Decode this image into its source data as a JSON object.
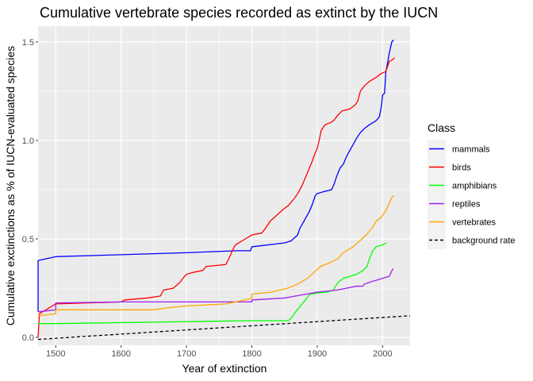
{
  "chart_data": {
    "type": "line",
    "title": "Cumulative vertebrate species recorded as extinct by the IUCN",
    "xlabel": "Year of extinction",
    "ylabel": "Cumulative exctinctions as % of IUCN-evaluated species",
    "xlim": [
      1473,
      2042
    ],
    "ylim": [
      -0.04,
      1.58
    ],
    "x_ticks": [
      1500,
      1600,
      1700,
      1800,
      1900,
      2000
    ],
    "x_tick_labels": [
      "1500",
      "1600",
      "1700",
      "1800",
      "1900",
      "2000"
    ],
    "y_ticks": [
      0.0,
      0.5,
      1.0,
      1.5
    ],
    "y_tick_labels": [
      "0.0",
      "0.5",
      "1.0",
      "1.5"
    ],
    "grid": true,
    "legend": {
      "title": "Class",
      "placement": "right"
    },
    "series": [
      {
        "name": "mammals",
        "color": "#0000ff",
        "points": [
          [
            1473,
            0.13
          ],
          [
            1473,
            0.39
          ],
          [
            1500,
            0.41
          ],
          [
            1600,
            0.42
          ],
          [
            1700,
            0.43
          ],
          [
            1777,
            0.44
          ],
          [
            1798,
            0.44
          ],
          [
            1800,
            0.46
          ],
          [
            1850,
            0.48
          ],
          [
            1860,
            0.49
          ],
          [
            1870,
            0.52
          ],
          [
            1873,
            0.55
          ],
          [
            1878,
            0.58
          ],
          [
            1883,
            0.61
          ],
          [
            1888,
            0.64
          ],
          [
            1893,
            0.68
          ],
          [
            1897,
            0.72
          ],
          [
            1900,
            0.73
          ],
          [
            1910,
            0.74
          ],
          [
            1922,
            0.75
          ],
          [
            1926,
            0.78
          ],
          [
            1930,
            0.82
          ],
          [
            1935,
            0.86
          ],
          [
            1940,
            0.88
          ],
          [
            1945,
            0.92
          ],
          [
            1950,
            0.95
          ],
          [
            1955,
            0.98
          ],
          [
            1960,
            1.01
          ],
          [
            1966,
            1.04
          ],
          [
            1972,
            1.06
          ],
          [
            1980,
            1.08
          ],
          [
            1985,
            1.09
          ],
          [
            1990,
            1.1
          ],
          [
            1995,
            1.12
          ],
          [
            1998,
            1.17
          ],
          [
            2000,
            1.23
          ],
          [
            2003,
            1.24
          ],
          [
            2005,
            1.35
          ],
          [
            2008,
            1.4
          ],
          [
            2010,
            1.44
          ],
          [
            2012,
            1.47
          ],
          [
            2014,
            1.5
          ],
          [
            2017,
            1.51
          ]
        ]
      },
      {
        "name": "birds",
        "color": "#ff0000",
        "points": [
          [
            1473,
            0.0
          ],
          [
            1475,
            0.12
          ],
          [
            1500,
            0.17
          ],
          [
            1600,
            0.18
          ],
          [
            1605,
            0.19
          ],
          [
            1640,
            0.2
          ],
          [
            1660,
            0.21
          ],
          [
            1665,
            0.24
          ],
          [
            1680,
            0.25
          ],
          [
            1690,
            0.28
          ],
          [
            1697,
            0.31
          ],
          [
            1700,
            0.32
          ],
          [
            1710,
            0.33
          ],
          [
            1725,
            0.34
          ],
          [
            1730,
            0.36
          ],
          [
            1760,
            0.37
          ],
          [
            1765,
            0.4
          ],
          [
            1770,
            0.44
          ],
          [
            1775,
            0.47
          ],
          [
            1780,
            0.48
          ],
          [
            1790,
            0.5
          ],
          [
            1800,
            0.52
          ],
          [
            1815,
            0.53
          ],
          [
            1820,
            0.55
          ],
          [
            1828,
            0.59
          ],
          [
            1838,
            0.62
          ],
          [
            1848,
            0.65
          ],
          [
            1856,
            0.67
          ],
          [
            1866,
            0.71
          ],
          [
            1872,
            0.74
          ],
          [
            1878,
            0.78
          ],
          [
            1883,
            0.82
          ],
          [
            1888,
            0.86
          ],
          [
            1893,
            0.9
          ],
          [
            1896,
            0.93
          ],
          [
            1900,
            0.96
          ],
          [
            1903,
            1.0
          ],
          [
            1906,
            1.05
          ],
          [
            1912,
            1.08
          ],
          [
            1920,
            1.09
          ],
          [
            1925,
            1.1
          ],
          [
            1932,
            1.13
          ],
          [
            1938,
            1.15
          ],
          [
            1950,
            1.16
          ],
          [
            1958,
            1.18
          ],
          [
            1962,
            1.2
          ],
          [
            1966,
            1.25
          ],
          [
            1973,
            1.28
          ],
          [
            1980,
            1.3
          ],
          [
            1990,
            1.32
          ],
          [
            1998,
            1.34
          ],
          [
            2005,
            1.35
          ],
          [
            2008,
            1.38
          ],
          [
            2010,
            1.4
          ],
          [
            2015,
            1.41
          ],
          [
            2018,
            1.42
          ]
        ]
      },
      {
        "name": "amphibians",
        "color": "#00ff00",
        "points": [
          [
            1473,
            0.07
          ],
          [
            1500,
            0.07
          ],
          [
            1600,
            0.075
          ],
          [
            1700,
            0.08
          ],
          [
            1800,
            0.085
          ],
          [
            1855,
            0.085
          ],
          [
            1858,
            0.09
          ],
          [
            1863,
            0.11
          ],
          [
            1867,
            0.13
          ],
          [
            1872,
            0.15
          ],
          [
            1877,
            0.17
          ],
          [
            1882,
            0.19
          ],
          [
            1886,
            0.21
          ],
          [
            1890,
            0.22
          ],
          [
            1900,
            0.225
          ],
          [
            1915,
            0.23
          ],
          [
            1925,
            0.24
          ],
          [
            1928,
            0.26
          ],
          [
            1932,
            0.28
          ],
          [
            1940,
            0.3
          ],
          [
            1950,
            0.31
          ],
          [
            1960,
            0.32
          ],
          [
            1970,
            0.34
          ],
          [
            1976,
            0.36
          ],
          [
            1980,
            0.4
          ],
          [
            1985,
            0.44
          ],
          [
            1990,
            0.46
          ],
          [
            2000,
            0.47
          ],
          [
            2006,
            0.48
          ]
        ]
      },
      {
        "name": "reptiles",
        "color": "#a020f0",
        "points": [
          [
            1473,
            0.13
          ],
          [
            1500,
            0.14
          ],
          [
            1500,
            0.175
          ],
          [
            1600,
            0.18
          ],
          [
            1700,
            0.18
          ],
          [
            1800,
            0.18
          ],
          [
            1800,
            0.19
          ],
          [
            1850,
            0.2
          ],
          [
            1900,
            0.23
          ],
          [
            1930,
            0.24
          ],
          [
            1960,
            0.26
          ],
          [
            1970,
            0.26
          ],
          [
            1972,
            0.27
          ],
          [
            1980,
            0.28
          ],
          [
            1990,
            0.29
          ],
          [
            2000,
            0.3
          ],
          [
            2010,
            0.31
          ],
          [
            2013,
            0.33
          ],
          [
            2016,
            0.35
          ]
        ]
      },
      {
        "name": "vertebrates",
        "color": "#ffa500",
        "points": [
          [
            1473,
            0.11
          ],
          [
            1500,
            0.12
          ],
          [
            1500,
            0.14
          ],
          [
            1600,
            0.14
          ],
          [
            1650,
            0.14
          ],
          [
            1670,
            0.15
          ],
          [
            1700,
            0.16
          ],
          [
            1760,
            0.17
          ],
          [
            1775,
            0.18
          ],
          [
            1790,
            0.19
          ],
          [
            1800,
            0.2
          ],
          [
            1800,
            0.22
          ],
          [
            1830,
            0.23
          ],
          [
            1855,
            0.25
          ],
          [
            1870,
            0.27
          ],
          [
            1885,
            0.3
          ],
          [
            1895,
            0.33
          ],
          [
            1905,
            0.36
          ],
          [
            1920,
            0.38
          ],
          [
            1932,
            0.4
          ],
          [
            1940,
            0.43
          ],
          [
            1955,
            0.46
          ],
          [
            1965,
            0.49
          ],
          [
            1975,
            0.52
          ],
          [
            1985,
            0.56
          ],
          [
            1990,
            0.59
          ],
          [
            1998,
            0.61
          ],
          [
            2002,
            0.63
          ],
          [
            2006,
            0.65
          ],
          [
            2010,
            0.68
          ],
          [
            2014,
            0.71
          ],
          [
            2017,
            0.72
          ]
        ]
      },
      {
        "name": "background rate",
        "color": "#000000",
        "dashed": true,
        "points": [
          [
            1473,
            -0.01
          ],
          [
            2042,
            0.11
          ]
        ]
      }
    ]
  }
}
